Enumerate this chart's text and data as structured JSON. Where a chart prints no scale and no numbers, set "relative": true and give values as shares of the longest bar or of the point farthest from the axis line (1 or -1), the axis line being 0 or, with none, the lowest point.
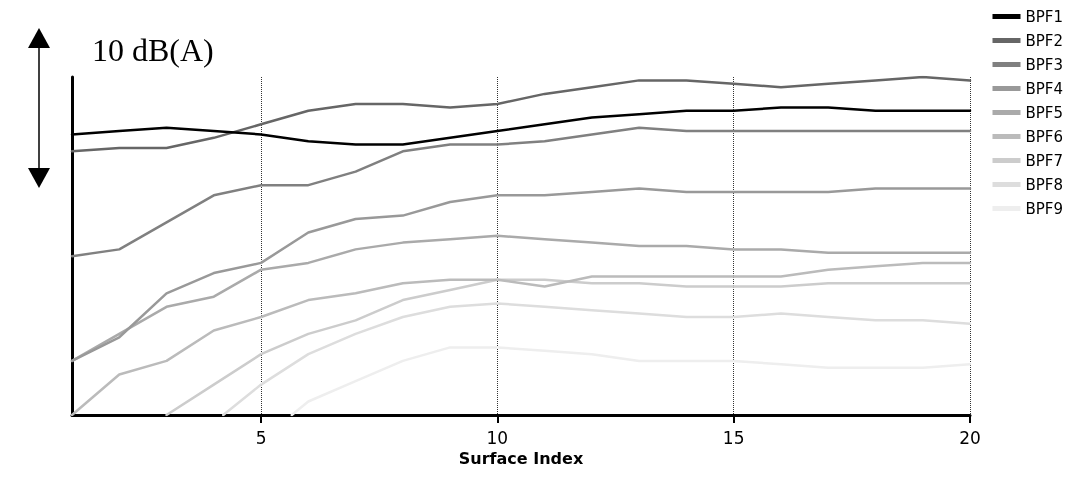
{
  "chart_data": {
    "type": "line",
    "xlabel": "Surface Index",
    "annotations": [
      "10 dB(A)"
    ],
    "relative": true,
    "x": [
      1,
      2,
      3,
      4,
      5,
      6,
      7,
      8,
      9,
      10,
      11,
      12,
      13,
      14,
      15,
      16,
      17,
      18,
      19,
      20
    ],
    "xlim": [
      1,
      20
    ],
    "xticks": [
      5,
      10,
      15,
      20
    ],
    "grid": "x",
    "legend": "top right",
    "tick_labels": "x",
    "marker": "none",
    "line_style": "solid",
    "series": [
      {
        "name": "BPF1",
        "color": "#000000",
        "values": [
          0.83,
          0.84,
          0.85,
          0.84,
          0.83,
          0.81,
          0.8,
          0.8,
          0.82,
          0.84,
          0.86,
          0.88,
          0.89,
          0.9,
          0.9,
          0.91,
          0.91,
          0.9,
          0.9,
          0.9
        ]
      },
      {
        "name": "BPF2",
        "color": "#666666",
        "values": [
          0.78,
          0.79,
          0.79,
          0.82,
          0.86,
          0.9,
          0.92,
          0.92,
          0.91,
          0.92,
          0.95,
          0.97,
          0.99,
          0.99,
          0.98,
          0.97,
          0.98,
          0.99,
          1.0,
          0.99
        ]
      },
      {
        "name": "BPF3",
        "color": "#808080",
        "values": [
          0.47,
          0.49,
          0.57,
          0.65,
          0.68,
          0.68,
          0.72,
          0.78,
          0.8,
          0.8,
          0.81,
          0.83,
          0.85,
          0.84,
          0.84,
          0.84,
          0.84,
          0.84,
          0.84,
          0.84
        ]
      },
      {
        "name": "BPF4",
        "color": "#999999",
        "values": [
          0.16,
          0.23,
          0.36,
          0.42,
          0.45,
          0.54,
          0.58,
          0.59,
          0.63,
          0.65,
          0.65,
          0.66,
          0.67,
          0.66,
          0.66,
          0.66,
          0.66,
          0.67,
          0.67,
          0.67
        ]
      },
      {
        "name": "BPF5",
        "color": "#aaaaaa",
        "values": [
          0.16,
          0.24,
          0.32,
          0.35,
          0.43,
          0.45,
          0.49,
          0.51,
          0.52,
          0.53,
          0.52,
          0.51,
          0.5,
          0.5,
          0.49,
          0.49,
          0.48,
          0.48,
          0.48,
          0.48
        ]
      },
      {
        "name": "BPF6",
        "color": "#bbbbbb",
        "values": [
          0,
          0.12,
          0.16,
          0.25,
          0.29,
          0.34,
          0.36,
          0.39,
          0.4,
          0.4,
          0.38,
          0.41,
          0.41,
          0.41,
          0.41,
          0.41,
          0.43,
          0.44,
          0.45,
          0.45
        ]
      },
      {
        "name": "BPF7",
        "color": "#cccccc",
        "values": [
          null,
          null,
          0,
          0.09,
          0.18,
          0.24,
          0.28,
          0.34,
          0.37,
          0.4,
          0.4,
          0.39,
          0.39,
          0.38,
          0.38,
          0.38,
          0.39,
          0.39,
          0.39,
          0.39
        ]
      },
      {
        "name": "BPF8",
        "color": "#dddddd",
        "x": [
          4.2,
          5,
          6,
          7,
          8,
          9,
          10,
          11,
          12,
          13,
          14,
          15,
          16,
          17,
          18,
          19,
          20
        ],
        "values": [
          0,
          0.09,
          0.18,
          0.24,
          0.29,
          0.32,
          0.33,
          0.32,
          0.31,
          0.3,
          0.29,
          0.29,
          0.3,
          0.29,
          0.28,
          0.28,
          0.27
        ]
      },
      {
        "name": "BPF9",
        "color": "#eeeeee",
        "x": [
          5.65,
          6,
          7,
          8,
          9,
          10,
          11,
          12,
          13,
          14,
          15,
          16,
          17,
          18,
          19,
          20
        ],
        "values": [
          0,
          0.04,
          0.1,
          0.16,
          0.2,
          0.2,
          0.19,
          0.18,
          0.16,
          0.16,
          0.16,
          0.15,
          0.14,
          0.14,
          0.14,
          0.15
        ]
      }
    ]
  }
}
